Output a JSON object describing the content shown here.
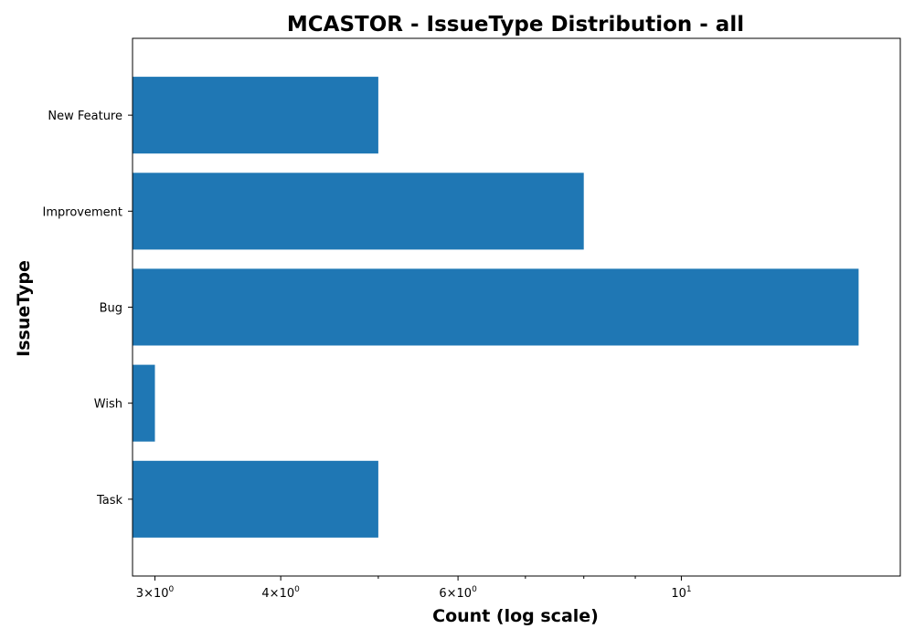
{
  "chart_data": {
    "type": "bar",
    "orientation": "horizontal",
    "title": "MCASTOR - IssueType Distribution - all",
    "xlabel": "Count (log scale)",
    "ylabel": "IssueType",
    "x_scale": "log",
    "xlim": [
      2.85,
      16.5
    ],
    "categories": [
      "New Feature",
      "Improvement",
      "Bug",
      "Wish",
      "Task"
    ],
    "values": [
      5,
      8,
      15,
      3,
      5
    ],
    "bar_color": "#1f77b4",
    "grid": false,
    "major_ticks": [
      {
        "value": 3,
        "mantissa": "3",
        "exponent": "0"
      },
      {
        "value": 4,
        "mantissa": "4",
        "exponent": "0"
      },
      {
        "value": 6,
        "mantissa": "6",
        "exponent": "0"
      },
      {
        "value": 10,
        "mantissa": "",
        "exponent": "1"
      }
    ],
    "minor_ticks": [
      5,
      7,
      8,
      9
    ]
  }
}
